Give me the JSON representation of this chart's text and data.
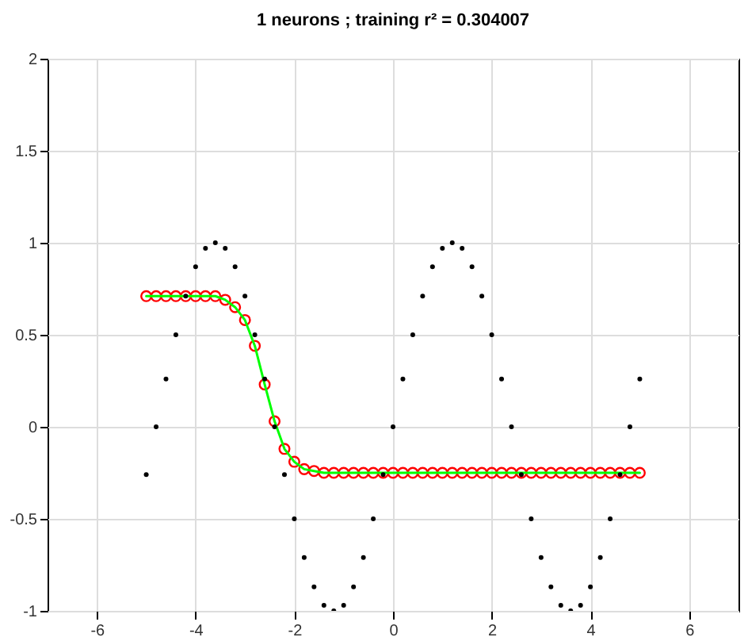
{
  "chart_data": {
    "type": "scatter",
    "title": "1 neurons ; training r² = 0.304007",
    "xlim": [
      -7,
      7
    ],
    "xticks": [
      -6,
      -4,
      -2,
      0,
      2,
      4,
      6
    ],
    "ylim": [
      -1,
      2
    ],
    "yticks": [
      -1,
      -0.5,
      0,
      0.5,
      1,
      1.5,
      2
    ],
    "grid": true,
    "series": [
      {
        "marker": "circle",
        "color": "#ff0000",
        "x": [
          -5,
          -4.8,
          -4.6,
          -4.4,
          -4.2,
          -4,
          -3.8,
          -3.6,
          -3.4,
          -3.2,
          -3,
          -2.8,
          -2.6,
          -2.4,
          -2.2,
          -2,
          -1.8,
          -1.6,
          -1.4,
          -1.2,
          -1,
          -0.8,
          -0.6,
          -0.4,
          -0.2,
          0,
          0.2,
          0.4,
          0.6,
          0.8,
          1,
          1.2,
          1.4,
          1.6,
          1.8,
          2,
          2.2,
          2.4,
          2.6,
          2.8,
          3,
          3.2,
          3.4,
          3.6,
          3.8,
          4,
          4.2,
          4.4,
          4.6,
          4.8,
          5
        ],
        "values": [
          0.71,
          0.71,
          0.71,
          0.71,
          0.71,
          0.71,
          0.71,
          0.71,
          0.69,
          0.65,
          0.58,
          0.44,
          0.23,
          0.03,
          -0.12,
          -0.19,
          -0.23,
          -0.24,
          -0.25,
          -0.25,
          -0.25,
          -0.25,
          -0.25,
          -0.25,
          -0.25,
          -0.25,
          -0.25,
          -0.25,
          -0.25,
          -0.25,
          -0.25,
          -0.25,
          -0.25,
          -0.25,
          -0.25,
          -0.25,
          -0.25,
          -0.25,
          -0.25,
          -0.25,
          -0.25,
          -0.25,
          -0.25,
          -0.25,
          -0.25,
          -0.25,
          -0.25,
          -0.25,
          -0.25,
          -0.25,
          -0.25
        ]
      },
      {
        "type": "line",
        "marker": "none",
        "color": "#00ff00",
        "x": [
          -5,
          -4.8,
          -4.6,
          -4.4,
          -4.2,
          -4,
          -3.8,
          -3.6,
          -3.4,
          -3.2,
          -3,
          -2.8,
          -2.6,
          -2.4,
          -2.2,
          -2,
          -1.8,
          -1.6,
          -1.4,
          -1.2,
          -1,
          -0.8,
          -0.6,
          -0.4,
          -0.2,
          0,
          0.2,
          0.4,
          0.6,
          0.8,
          1,
          1.2,
          1.4,
          1.6,
          1.8,
          2,
          2.2,
          2.4,
          2.6,
          2.8,
          3,
          3.2,
          3.4,
          3.6,
          3.8,
          4,
          4.2,
          4.4,
          4.6,
          4.8,
          5
        ],
        "values": [
          0.71,
          0.71,
          0.71,
          0.71,
          0.71,
          0.71,
          0.71,
          0.71,
          0.69,
          0.65,
          0.58,
          0.44,
          0.23,
          0.03,
          -0.12,
          -0.19,
          -0.23,
          -0.24,
          -0.25,
          -0.25,
          -0.25,
          -0.25,
          -0.25,
          -0.25,
          -0.25,
          -0.25,
          -0.25,
          -0.25,
          -0.25,
          -0.25,
          -0.25,
          -0.25,
          -0.25,
          -0.25,
          -0.25,
          -0.25,
          -0.25,
          -0.25,
          -0.25,
          -0.25,
          -0.25,
          -0.25,
          -0.25,
          -0.25,
          -0.25,
          -0.25,
          -0.25,
          -0.25,
          -0.25,
          -0.25,
          -0.25
        ]
      },
      {
        "marker": "circle",
        "color": "#000000",
        "x": [
          -5,
          -4.8,
          -4.6,
          -4.4,
          -4.2,
          -4,
          -3.8,
          -3.6,
          -3.4,
          -3.2,
          -3,
          -2.8,
          -2.6,
          -2.4,
          -2.2,
          -2,
          -1.8,
          -1.6,
          -1.4,
          -1.2,
          -1,
          -0.8,
          -0.6,
          -0.4,
          -0.2,
          0,
          0.2,
          0.4,
          0.6,
          0.8,
          1,
          1.2,
          1.4,
          1.6,
          1.8,
          2,
          2.2,
          2.4,
          2.6,
          2.8,
          3,
          3.2,
          3.4,
          3.6,
          3.8,
          4,
          4.2,
          4.4,
          4.6,
          4.8,
          5
        ],
        "values": [
          -0.26,
          0,
          0.26,
          0.5,
          0.71,
          0.87,
          0.97,
          1,
          0.97,
          0.87,
          0.71,
          0.5,
          0.26,
          0,
          -0.26,
          -0.5,
          -0.71,
          -0.87,
          -0.97,
          -1,
          -0.97,
          -0.87,
          -0.71,
          -0.5,
          -0.26,
          0,
          0.26,
          0.5,
          0.71,
          0.87,
          0.97,
          1,
          0.97,
          0.87,
          0.71,
          0.5,
          0.26,
          0,
          -0.26,
          -0.5,
          -0.71,
          -0.87,
          -0.97,
          -1,
          -0.97,
          -0.87,
          -0.71,
          -0.5,
          -0.26,
          0,
          0.26
        ]
      }
    ]
  }
}
